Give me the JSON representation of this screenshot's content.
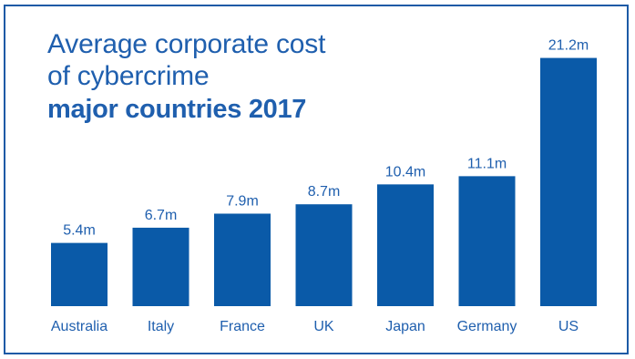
{
  "colors": {
    "bar": "#0a5aa8",
    "text": "#1f5fae",
    "border": "#1c5aa6"
  },
  "chart_data": {
    "type": "bar",
    "title": "Average corporate cost of cybercrime",
    "subtitle": "major countries 2017",
    "categories": [
      "Australia",
      "Italy",
      "France",
      "UK",
      "Japan",
      "Germany",
      "US"
    ],
    "values": [
      5.4,
      6.7,
      7.9,
      8.7,
      10.4,
      11.1,
      21.2
    ],
    "data_labels": [
      "5.4m",
      "6.7m",
      "7.9m",
      "8.7m",
      "10.4m",
      "11.1m",
      "21.2m"
    ],
    "xlabel": "",
    "ylabel": "",
    "grid": false,
    "legend": "none"
  },
  "title_lines": [
    "Average corporate cost",
    "of cybercrime"
  ],
  "subtitle": "major countries 2017"
}
